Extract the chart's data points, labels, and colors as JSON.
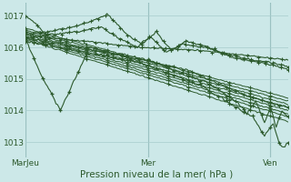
{
  "bg_color": "#cce8e8",
  "grid_color": "#a8cccc",
  "line_color": "#2d5a2d",
  "marker_color": "#2d5a2d",
  "xlabel": "Pression niveau de la mer( hPa )",
  "xlim": [
    0,
    90
  ],
  "ylim": [
    1012.5,
    1017.4
  ],
  "yticks": [
    1013,
    1014,
    1015,
    1016,
    1017
  ],
  "xtick_positions": [
    0,
    42,
    84
  ],
  "xtick_labels": [
    "MarJeu",
    "Mer",
    "Ven"
  ]
}
